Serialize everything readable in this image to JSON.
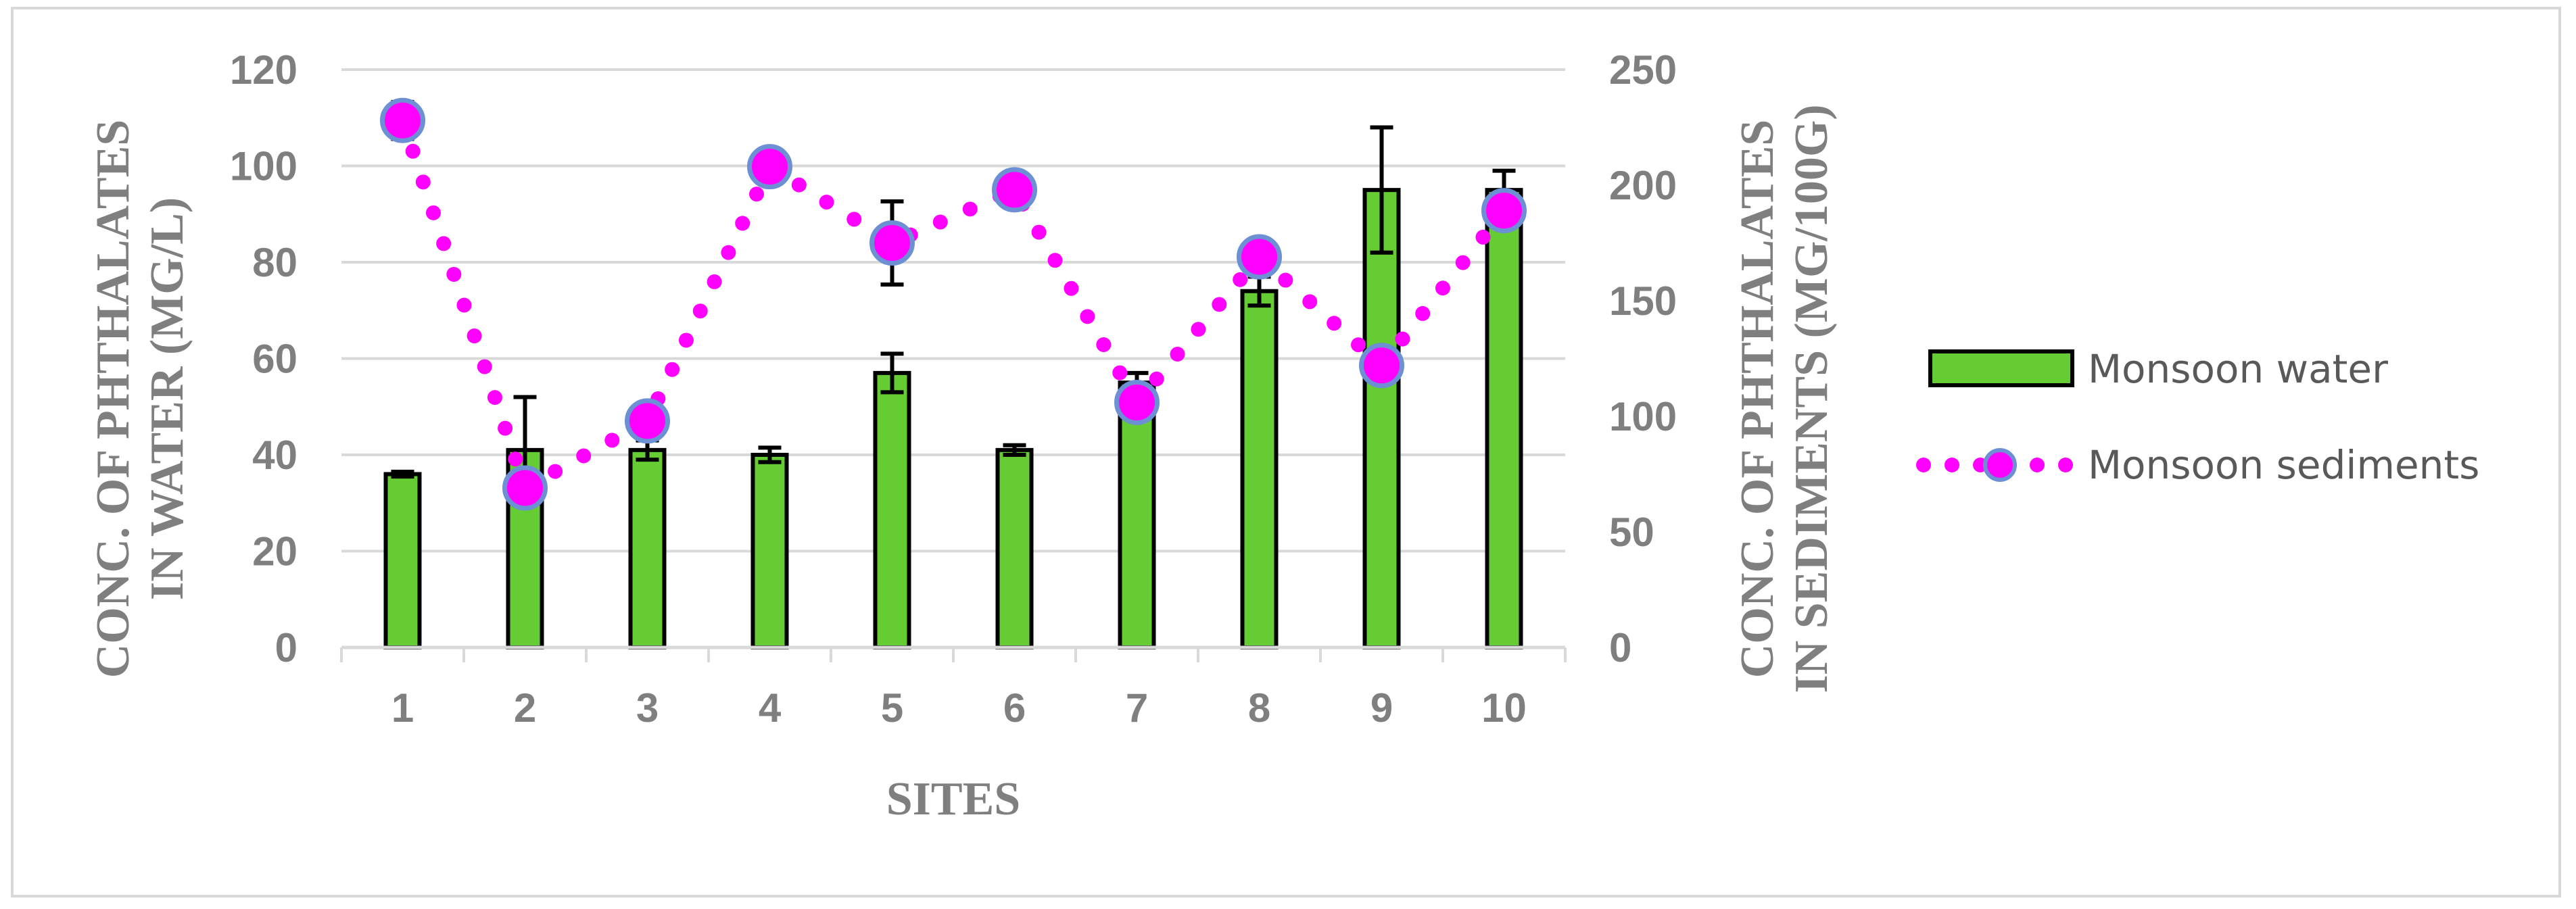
{
  "chart_data": {
    "type": "bar",
    "categories": [
      "1",
      "2",
      "3",
      "4",
      "5",
      "6",
      "7",
      "8",
      "9",
      "10"
    ],
    "xlabel": "SITES",
    "ylabel_left": [
      "CONC. OF PHTHALATES",
      "IN WATER (MG/L)"
    ],
    "ylabel_right": [
      "CONC. OF PHTHALATES",
      "IN SEDIMENTS (MG/100G)"
    ],
    "ylim_left": [
      0,
      120
    ],
    "yticks_left": [
      "0",
      "20",
      "40",
      "60",
      "80",
      "100",
      "120"
    ],
    "ylim_right": [
      0,
      250
    ],
    "yticks_right": [
      "0",
      "50",
      "100",
      "150",
      "200",
      "250"
    ],
    "grid": true,
    "legend_position": "right",
    "series": [
      {
        "name": "Monsoon water",
        "kind": "bar",
        "axis": "left",
        "color": "#66cc33",
        "values": [
          36,
          41,
          41,
          40,
          57,
          41,
          55,
          74,
          95,
          95
        ],
        "error": [
          0.5,
          11,
          2,
          1.5,
          4,
          1,
          2,
          3,
          13,
          4
        ]
      },
      {
        "name": "Monsoon sediments",
        "kind": "line-dotted",
        "axis": "right",
        "color": "#ff00ff",
        "values": [
          228,
          69,
          98,
          208,
          175,
          198,
          106,
          169,
          122,
          189
        ],
        "error": [
          8,
          0,
          0,
          0,
          18,
          0,
          0,
          0,
          0,
          0
        ]
      }
    ]
  }
}
